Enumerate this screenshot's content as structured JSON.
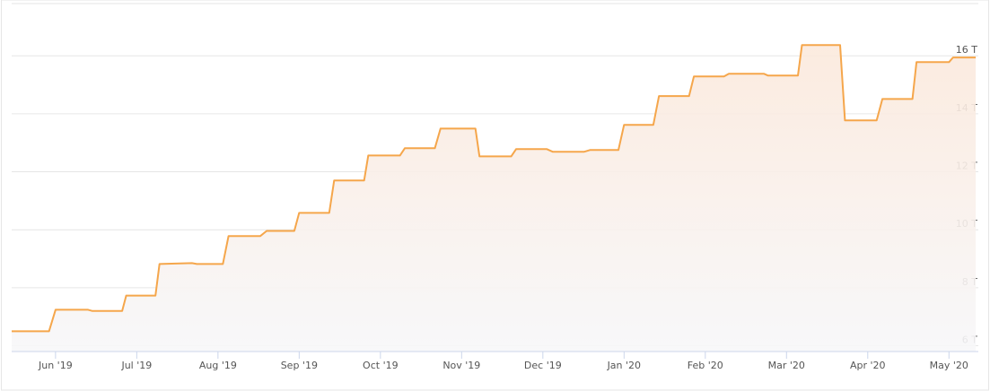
{
  "chart_data": {
    "type": "area",
    "x": [
      5.46,
      5.92,
      6.0,
      6.4,
      6.45,
      6.82,
      6.87,
      7.23,
      7.28,
      7.68,
      7.74,
      8.06,
      8.13,
      8.52,
      8.6,
      8.94,
      9.0,
      9.37,
      9.43,
      9.8,
      9.85,
      10.24,
      10.3,
      10.67,
      10.74,
      11.17,
      11.22,
      11.61,
      11.67,
      12.05,
      12.12,
      12.51,
      12.58,
      12.93,
      13.0,
      13.36,
      13.43,
      13.8,
      13.86,
      14.23,
      14.29,
      14.72,
      14.77,
      15.14,
      15.19,
      15.66,
      15.72,
      16.11,
      16.18,
      16.55,
      16.6,
      17.0,
      17.05,
      17.33
    ],
    "values": [
      6.5,
      6.5,
      7.24,
      7.24,
      7.2,
      7.2,
      7.73,
      7.73,
      8.82,
      8.85,
      8.82,
      8.82,
      9.78,
      9.78,
      9.96,
      9.96,
      10.58,
      10.58,
      11.7,
      11.7,
      12.56,
      12.56,
      12.81,
      12.81,
      13.49,
      13.49,
      12.53,
      12.53,
      12.78,
      12.78,
      12.69,
      12.69,
      12.75,
      12.75,
      13.62,
      13.62,
      14.61,
      14.61,
      15.29,
      15.29,
      15.38,
      15.38,
      15.32,
      15.32,
      16.37,
      16.37,
      13.77,
      13.77,
      14.51,
      14.51,
      15.78,
      15.78,
      15.94,
      15.94
    ],
    "color": "#f5a64b",
    "xlim": [
      5.46,
      17.45
    ],
    "xticks": [
      {
        "value": 6,
        "label": "Jun '19"
      },
      {
        "value": 7,
        "label": "Jul '19"
      },
      {
        "value": 8,
        "label": "Aug '19"
      },
      {
        "value": 9,
        "label": "Sep '19"
      },
      {
        "value": 10,
        "label": "Oct '19"
      },
      {
        "value": 11,
        "label": "Nov '19"
      },
      {
        "value": 12,
        "label": "Dec '19"
      },
      {
        "value": 13,
        "label": "Jan '20"
      },
      {
        "value": 14,
        "label": "Feb '20"
      },
      {
        "value": 15,
        "label": "Mar '20"
      },
      {
        "value": 16,
        "label": "Apr '20"
      },
      {
        "value": 17,
        "label": "May '20"
      }
    ],
    "ylim": [
      5.8,
      17.8
    ],
    "yticks": [
      {
        "value": 6,
        "label": "6 T"
      },
      {
        "value": 8,
        "label": "8 T"
      },
      {
        "value": 10,
        "label": "10 T"
      },
      {
        "value": 12,
        "label": "12 T"
      },
      {
        "value": 14,
        "label": "14 T"
      },
      {
        "value": 16,
        "label": "16 T"
      }
    ],
    "grid": true
  }
}
